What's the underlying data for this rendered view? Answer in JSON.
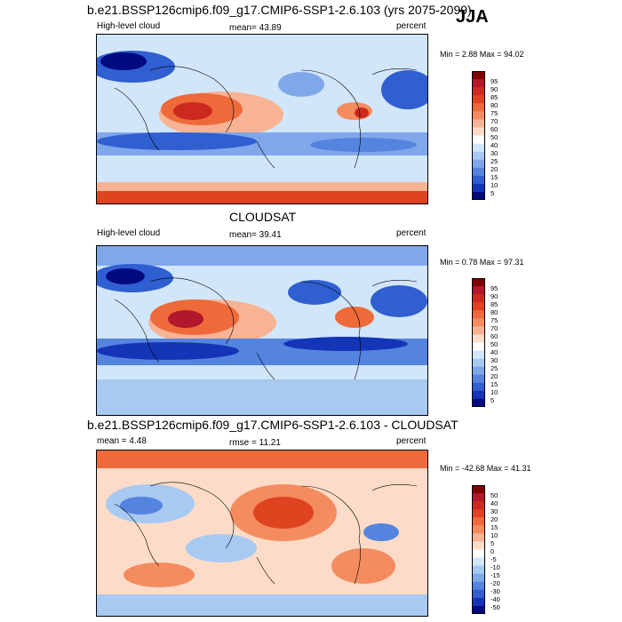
{
  "season": "JJA",
  "panels": [
    {
      "title": "b.e21.BSSP126cmip6.f09_g17.CMIP6-SSP1-2.6.103 (yrs 2075-2099)",
      "left": "High-level cloud",
      "center": "mean=  43.89",
      "right": "percent",
      "minmax": "Min =   2.88 Max =  94.02",
      "colorbar_labels": [
        "95",
        "90",
        "85",
        "80",
        "75",
        "70",
        "60",
        "50",
        "40",
        "30",
        "25",
        "20",
        "15",
        "10",
        "5"
      ]
    },
    {
      "title": "CLOUDSAT",
      "left": "High-level cloud",
      "center": "mean=  39.41",
      "right": "percent",
      "minmax": "Min =   0.78 Max =  97.31",
      "colorbar_labels": [
        "95",
        "90",
        "85",
        "80",
        "75",
        "70",
        "60",
        "50",
        "40",
        "30",
        "25",
        "20",
        "15",
        "10",
        "5"
      ]
    },
    {
      "title": "b.e21.BSSP126cmip6.f09_g17.CMIP6-SSP1-2.6.103 - CLOUDSAT",
      "left": "mean =   4.48",
      "center": "rmse =  11.21",
      "right": "percent",
      "minmax": "Min = -42.68 Max =  41.31",
      "colorbar_labels": [
        "50",
        "40",
        "30",
        "20",
        "15",
        "10",
        "5",
        "0",
        "-5",
        "-10",
        "-15",
        "-20",
        "-30",
        "-40",
        "-50"
      ]
    }
  ],
  "colors": {
    "cbar_top_to_bottom": [
      "#7f0000",
      "#b2182b",
      "#cc2a1e",
      "#e0431f",
      "#ee6a3a",
      "#f48c60",
      "#f8b394",
      "#fcdcc8",
      "#fdfdfd",
      "#d2e6fa",
      "#a8c9f2",
      "#7fa7ea",
      "#5584df",
      "#2f5fd0",
      "#1435b8",
      "#000a80"
    ]
  }
}
